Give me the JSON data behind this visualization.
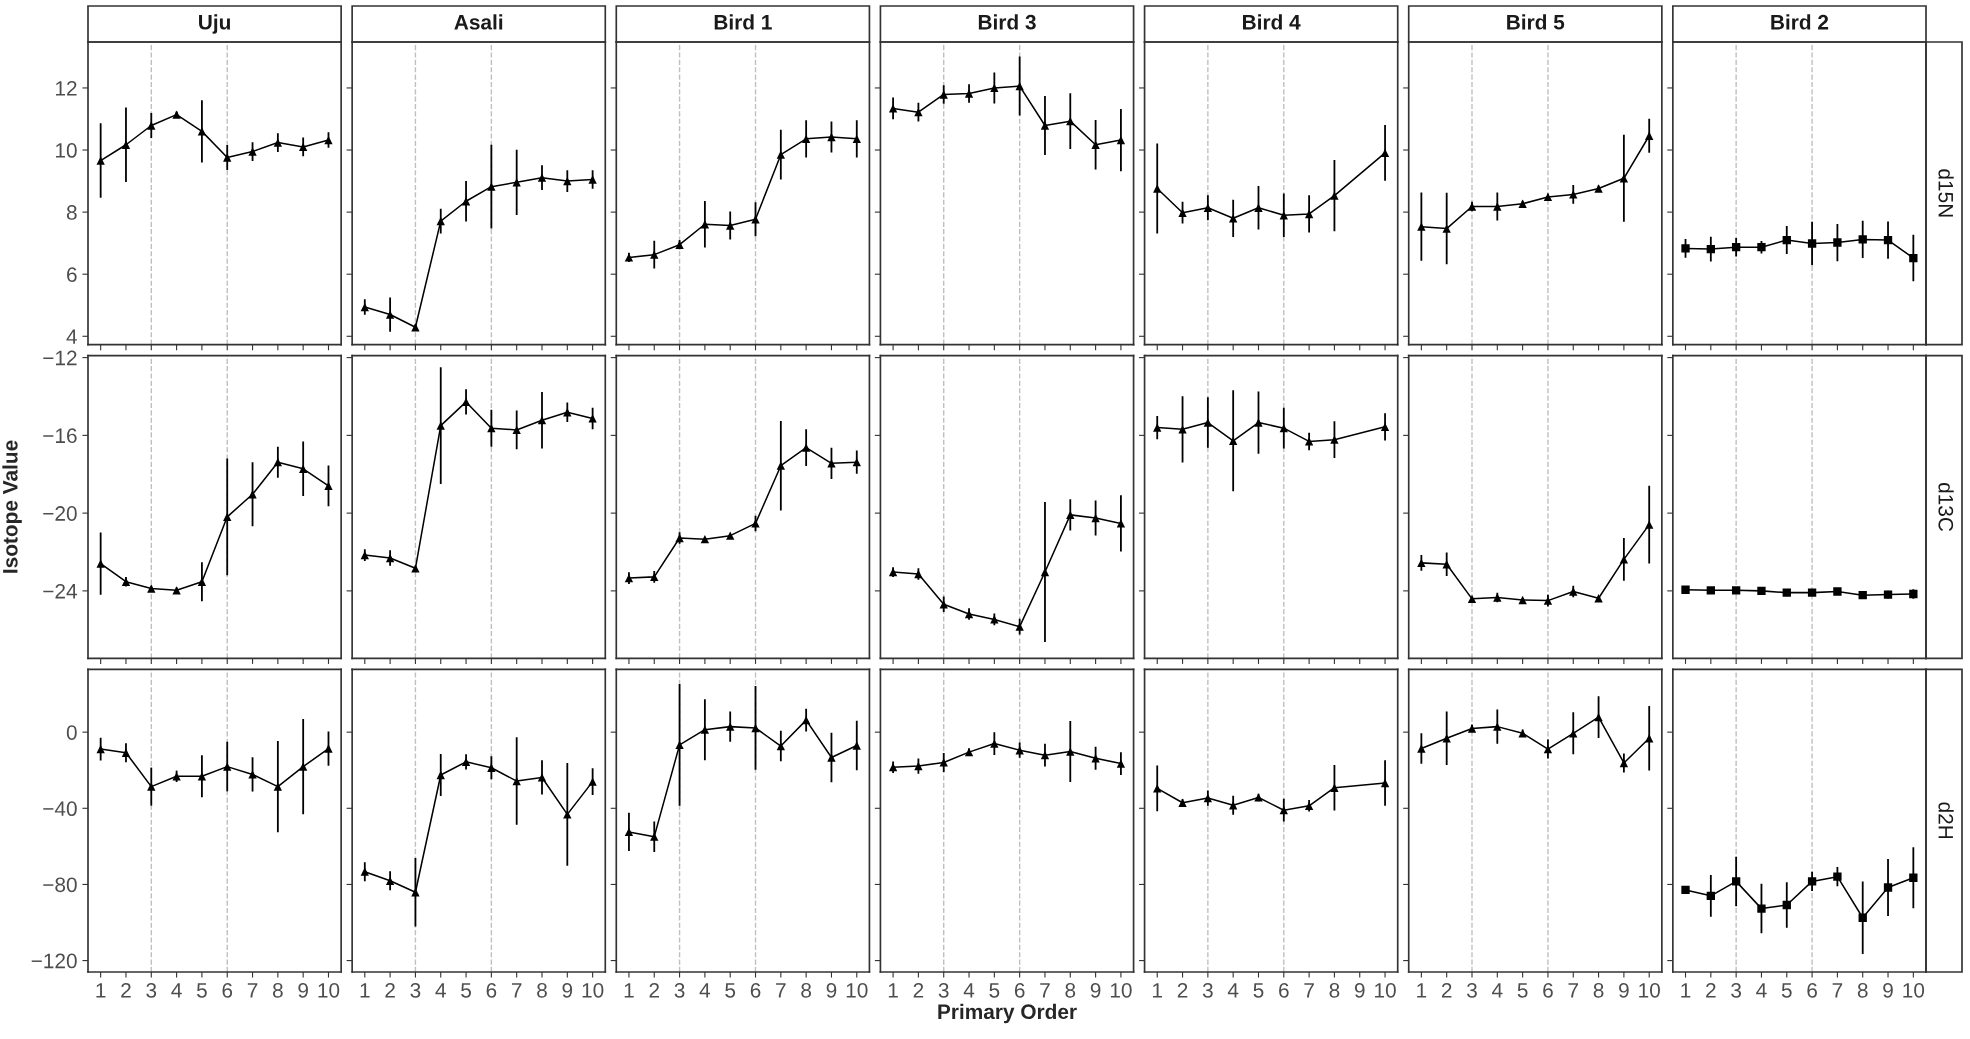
{
  "chart_data": [
    {
      "type": "line",
      "title": "Uju",
      "x": [
        1,
        2,
        3,
        4,
        5,
        6,
        7,
        8,
        9,
        10
      ],
      "xlim": [
        0.5,
        10.5
      ],
      "xticks": [
        1,
        2,
        3,
        4,
        5,
        6,
        7,
        8,
        9,
        10
      ],
      "ylim": [
        3.73,
        13.48
      ],
      "yticks": [
        4,
        6,
        8,
        10,
        12
      ],
      "tick_labels": "y",
      "marker": "triangle",
      "ref_lines": [
        {
          "axis": "x",
          "value": 3,
          "color": "#bfbfbf",
          "line_style": "dashed"
        },
        {
          "axis": "x",
          "value": 6,
          "color": "#bfbfbf",
          "line_style": "dashed"
        }
      ],
      "series": [
        {
          "color": "#000000",
          "values": [
            9.66,
            10.17,
            10.79,
            11.14,
            10.6,
            9.76,
            9.95,
            10.24,
            10.1,
            10.32
          ],
          "errors": [
            1.2,
            1.2,
            0.4,
            0.1,
            1.0,
            0.4,
            0.3,
            0.3,
            0.3,
            0.25
          ]
        }
      ]
    },
    {
      "type": "line",
      "title": "Asali",
      "x": [
        1,
        2,
        3,
        4,
        5,
        6,
        7,
        8,
        9,
        10
      ],
      "xlim": [
        0.5,
        10.5
      ],
      "xticks": [
        1,
        2,
        3,
        4,
        5,
        6,
        7,
        8,
        9,
        10
      ],
      "ylim": [
        3.73,
        13.48
      ],
      "yticks": [
        4,
        6,
        8,
        10,
        12
      ],
      "tick_labels": false,
      "marker": "triangle",
      "ref_lines": [
        {
          "axis": "x",
          "value": 3,
          "color": "#bfbfbf",
          "line_style": "dashed"
        },
        {
          "axis": "x",
          "value": 6,
          "color": "#bfbfbf",
          "line_style": "dashed"
        }
      ],
      "series": [
        {
          "color": "#000000",
          "values": [
            4.94,
            4.7,
            4.29,
            7.71,
            8.35,
            8.82,
            8.96,
            9.11,
            9.0,
            9.05
          ],
          "errors": [
            0.25,
            0.55,
            0.1,
            0.4,
            0.65,
            1.35,
            1.05,
            0.4,
            0.35,
            0.3
          ]
        }
      ]
    },
    {
      "type": "line",
      "title": "Bird 1",
      "x": [
        1,
        2,
        3,
        4,
        5,
        6,
        7,
        8,
        9,
        10
      ],
      "xlim": [
        0.5,
        10.5
      ],
      "xticks": [
        1,
        2,
        3,
        4,
        5,
        6,
        7,
        8,
        9,
        10
      ],
      "ylim": [
        3.73,
        13.48
      ],
      "yticks": [
        4,
        6,
        8,
        10,
        12
      ],
      "tick_labels": false,
      "marker": "triangle",
      "ref_lines": [
        {
          "axis": "x",
          "value": 3,
          "color": "#bfbfbf",
          "line_style": "dashed"
        },
        {
          "axis": "x",
          "value": 6,
          "color": "#bfbfbf",
          "line_style": "dashed"
        }
      ],
      "series": [
        {
          "color": "#000000",
          "values": [
            6.54,
            6.63,
            6.95,
            7.61,
            7.57,
            7.77,
            9.85,
            10.36,
            10.42,
            10.36
          ],
          "errors": [
            0.15,
            0.45,
            0.15,
            0.75,
            0.45,
            0.55,
            0.8,
            0.6,
            0.5,
            0.6
          ]
        }
      ]
    },
    {
      "type": "line",
      "title": "Bird 3",
      "x": [
        1,
        2,
        3,
        4,
        5,
        6,
        7,
        8,
        9,
        10
      ],
      "xlim": [
        0.5,
        10.5
      ],
      "xticks": [
        1,
        2,
        3,
        4,
        5,
        6,
        7,
        8,
        9,
        10
      ],
      "ylim": [
        3.73,
        13.48
      ],
      "yticks": [
        4,
        6,
        8,
        10,
        12
      ],
      "tick_labels": false,
      "marker": "triangle",
      "ref_lines": [
        {
          "axis": "x",
          "value": 3,
          "color": "#bfbfbf",
          "line_style": "dashed"
        },
        {
          "axis": "x",
          "value": 6,
          "color": "#bfbfbf",
          "line_style": "dashed"
        }
      ],
      "series": [
        {
          "color": "#000000",
          "values": [
            11.34,
            11.22,
            11.79,
            11.82,
            12.0,
            12.06,
            10.79,
            10.93,
            10.17,
            10.32
          ],
          "errors": [
            0.35,
            0.3,
            0.3,
            0.3,
            0.5,
            0.95,
            0.95,
            0.9,
            0.8,
            1.0
          ]
        }
      ]
    },
    {
      "type": "line",
      "title": "Bird 4",
      "x": [
        1,
        2,
        3,
        4,
        5,
        6,
        7,
        8,
        9,
        10
      ],
      "xlim": [
        0.5,
        10.5
      ],
      "xticks": [
        1,
        2,
        3,
        4,
        5,
        6,
        7,
        8,
        9,
        10
      ],
      "ylim": [
        3.73,
        13.48
      ],
      "yticks": [
        4,
        6,
        8,
        10,
        12
      ],
      "tick_labels": false,
      "marker": "triangle",
      "ref_lines": [
        {
          "axis": "x",
          "value": 3,
          "color": "#bfbfbf",
          "line_style": "dashed"
        },
        {
          "axis": "x",
          "value": 6,
          "color": "#bfbfbf",
          "line_style": "dashed"
        }
      ],
      "series": [
        {
          "color": "#000000",
          "values": [
            8.76,
            7.98,
            8.14,
            7.8,
            8.14,
            7.9,
            7.94,
            8.53,
            null,
            9.91
          ],
          "errors": [
            1.45,
            0.35,
            0.4,
            0.6,
            0.7,
            0.7,
            0.6,
            1.15,
            null,
            0.9
          ]
        }
      ]
    },
    {
      "type": "line",
      "title": "Bird 5",
      "x": [
        1,
        2,
        3,
        4,
        5,
        6,
        7,
        8,
        9,
        10
      ],
      "xlim": [
        0.5,
        10.5
      ],
      "xticks": [
        1,
        2,
        3,
        4,
        5,
        6,
        7,
        8,
        9,
        10
      ],
      "ylim": [
        3.73,
        13.48
      ],
      "yticks": [
        4,
        6,
        8,
        10,
        12
      ],
      "tick_labels": false,
      "marker": "triangle",
      "ref_lines": [
        {
          "axis": "x",
          "value": 3,
          "color": "#bfbfbf",
          "line_style": "dashed"
        },
        {
          "axis": "x",
          "value": 6,
          "color": "#bfbfbf",
          "line_style": "dashed"
        }
      ],
      "series": [
        {
          "color": "#000000",
          "values": [
            7.53,
            7.47,
            8.18,
            8.18,
            8.27,
            8.49,
            8.57,
            8.76,
            9.09,
            10.46
          ],
          "errors": [
            1.1,
            1.15,
            0.15,
            0.45,
            0.1,
            0.1,
            0.3,
            0.1,
            1.4,
            0.55
          ]
        }
      ]
    },
    {
      "type": "line",
      "title": "Bird 2",
      "y2label": "d15N",
      "x": [
        1,
        2,
        3,
        4,
        5,
        6,
        7,
        8,
        9,
        10
      ],
      "xlim": [
        0.5,
        10.5
      ],
      "xticks": [
        1,
        2,
        3,
        4,
        5,
        6,
        7,
        8,
        9,
        10
      ],
      "ylim": [
        3.73,
        13.48
      ],
      "yticks": [
        4,
        6,
        8,
        10,
        12
      ],
      "tick_labels": false,
      "marker": "square",
      "ref_lines": [
        {
          "axis": "x",
          "value": 3,
          "color": "#bfbfbf",
          "line_style": "dashed"
        },
        {
          "axis": "x",
          "value": 6,
          "color": "#bfbfbf",
          "line_style": "dashed"
        }
      ],
      "series": [
        {
          "color": "#000000",
          "values": [
            6.83,
            6.81,
            6.87,
            6.87,
            7.1,
            6.99,
            7.02,
            7.12,
            7.1,
            6.52
          ],
          "errors": [
            0.3,
            0.4,
            0.3,
            0.2,
            0.45,
            0.7,
            0.6,
            0.6,
            0.6,
            0.75
          ]
        }
      ]
    },
    {
      "type": "line",
      "ylabel": "Isotope Value",
      "x": [
        1,
        2,
        3,
        4,
        5,
        6,
        7,
        8,
        9,
        10
      ],
      "xlim": [
        0.5,
        10.5
      ],
      "xticks": [
        1,
        2,
        3,
        4,
        5,
        6,
        7,
        8,
        9,
        10
      ],
      "ylim": [
        -27.47,
        -11.9
      ],
      "yticks": [
        -24,
        -20,
        -16,
        -12
      ],
      "tick_labels": "y",
      "marker": "triangle",
      "ref_lines": [
        {
          "axis": "x",
          "value": 3,
          "color": "#bfbfbf",
          "line_style": "dashed"
        },
        {
          "axis": "x",
          "value": 6,
          "color": "#bfbfbf",
          "line_style": "dashed"
        }
      ],
      "series": [
        {
          "color": "#000000",
          "values": [
            -22.6,
            -23.53,
            -23.88,
            -23.97,
            -23.53,
            -20.19,
            -19.03,
            -17.38,
            -17.72,
            -18.6
          ],
          "errors": [
            1.6,
            0.25,
            0.15,
            0.15,
            1.0,
            3.0,
            1.65,
            0.8,
            1.4,
            1.05
          ]
        }
      ]
    },
    {
      "type": "line",
      "x": [
        1,
        2,
        3,
        4,
        5,
        6,
        7,
        8,
        9,
        10
      ],
      "xlim": [
        0.5,
        10.5
      ],
      "xticks": [
        1,
        2,
        3,
        4,
        5,
        6,
        7,
        8,
        9,
        10
      ],
      "ylim": [
        -27.47,
        -11.9
      ],
      "yticks": [
        -24,
        -20,
        -16,
        -12
      ],
      "tick_labels": false,
      "marker": "triangle",
      "ref_lines": [
        {
          "axis": "x",
          "value": 3,
          "color": "#bfbfbf",
          "line_style": "dashed"
        },
        {
          "axis": "x",
          "value": 6,
          "color": "#bfbfbf",
          "line_style": "dashed"
        }
      ],
      "series": [
        {
          "color": "#000000",
          "values": [
            -22.16,
            -22.31,
            -22.84,
            -15.5,
            -14.28,
            -15.63,
            -15.72,
            -15.22,
            -14.81,
            -15.13
          ],
          "errors": [
            0.3,
            0.4,
            0.1,
            3.0,
            0.65,
            0.95,
            1.0,
            1.45,
            0.5,
            0.55
          ]
        }
      ]
    },
    {
      "type": "line",
      "x": [
        1,
        2,
        3,
        4,
        5,
        6,
        7,
        8,
        9,
        10
      ],
      "xlim": [
        0.5,
        10.5
      ],
      "xticks": [
        1,
        2,
        3,
        4,
        5,
        6,
        7,
        8,
        9,
        10
      ],
      "ylim": [
        -27.47,
        -11.9
      ],
      "yticks": [
        -24,
        -20,
        -16,
        -12
      ],
      "tick_labels": false,
      "marker": "triangle",
      "ref_lines": [
        {
          "axis": "x",
          "value": 3,
          "color": "#bfbfbf",
          "line_style": "dashed"
        },
        {
          "axis": "x",
          "value": 6,
          "color": "#bfbfbf",
          "line_style": "dashed"
        }
      ],
      "series": [
        {
          "color": "#000000",
          "values": [
            -23.34,
            -23.28,
            -21.28,
            -21.34,
            -21.16,
            -20.53,
            -17.56,
            -16.63,
            -17.44,
            -17.38
          ],
          "errors": [
            0.3,
            0.3,
            0.3,
            0.1,
            0.1,
            0.4,
            2.3,
            0.95,
            0.8,
            0.6
          ]
        }
      ]
    },
    {
      "type": "line",
      "x": [
        1,
        2,
        3,
        4,
        5,
        6,
        7,
        8,
        9,
        10
      ],
      "xlim": [
        0.5,
        10.5
      ],
      "xticks": [
        1,
        2,
        3,
        4,
        5,
        6,
        7,
        8,
        9,
        10
      ],
      "ylim": [
        -27.47,
        -11.9
      ],
      "yticks": [
        -24,
        -20,
        -16,
        -12
      ],
      "tick_labels": false,
      "marker": "triangle",
      "ref_lines": [
        {
          "axis": "x",
          "value": 3,
          "color": "#bfbfbf",
          "line_style": "dashed"
        },
        {
          "axis": "x",
          "value": 6,
          "color": "#bfbfbf",
          "line_style": "dashed"
        }
      ],
      "series": [
        {
          "color": "#000000",
          "values": [
            -23.03,
            -23.13,
            -24.69,
            -25.19,
            -25.47,
            -25.84,
            -23.03,
            -20.09,
            -20.25,
            -20.53
          ],
          "errors": [
            0.25,
            0.3,
            0.4,
            0.3,
            0.3,
            0.4,
            3.6,
            0.8,
            0.9,
            1.45
          ]
        }
      ]
    },
    {
      "type": "line",
      "x": [
        1,
        2,
        3,
        4,
        5,
        6,
        7,
        8,
        9,
        10
      ],
      "xlim": [
        0.5,
        10.5
      ],
      "xticks": [
        1,
        2,
        3,
        4,
        5,
        6,
        7,
        8,
        9,
        10
      ],
      "ylim": [
        -27.47,
        -11.9
      ],
      "yticks": [
        -24,
        -20,
        -16,
        -12
      ],
      "tick_labels": false,
      "marker": "triangle",
      "ref_lines": [
        {
          "axis": "x",
          "value": 3,
          "color": "#bfbfbf",
          "line_style": "dashed"
        },
        {
          "axis": "x",
          "value": 6,
          "color": "#bfbfbf",
          "line_style": "dashed"
        }
      ],
      "series": [
        {
          "color": "#000000",
          "values": [
            -15.6,
            -15.69,
            -15.34,
            -16.28,
            -15.34,
            -15.63,
            -16.31,
            -16.22,
            null,
            -15.56
          ],
          "errors": [
            0.6,
            1.7,
            1.3,
            2.6,
            1.6,
            1.05,
            0.45,
            0.95,
            null,
            0.7
          ]
        }
      ]
    },
    {
      "type": "line",
      "x": [
        1,
        2,
        3,
        4,
        5,
        6,
        7,
        8,
        9,
        10
      ],
      "xlim": [
        0.5,
        10.5
      ],
      "xticks": [
        1,
        2,
        3,
        4,
        5,
        6,
        7,
        8,
        9,
        10
      ],
      "ylim": [
        -27.47,
        -11.9
      ],
      "yticks": [
        -24,
        -20,
        -16,
        -12
      ],
      "tick_labels": false,
      "marker": "triangle",
      "ref_lines": [
        {
          "axis": "x",
          "value": 3,
          "color": "#bfbfbf",
          "line_style": "dashed"
        },
        {
          "axis": "x",
          "value": 6,
          "color": "#bfbfbf",
          "line_style": "dashed"
        }
      ],
      "series": [
        {
          "color": "#000000",
          "values": [
            -22.56,
            -22.63,
            -24.41,
            -24.34,
            -24.47,
            -24.5,
            -24.03,
            -24.38,
            -22.38,
            -20.59
          ],
          "errors": [
            0.4,
            0.6,
            0.1,
            0.25,
            0.1,
            0.3,
            0.3,
            0.1,
            1.1,
            2.0
          ]
        }
      ]
    },
    {
      "type": "line",
      "y2label": "d13C",
      "x": [
        1,
        2,
        3,
        4,
        5,
        6,
        7,
        8,
        9,
        10
      ],
      "xlim": [
        0.5,
        10.5
      ],
      "xticks": [
        1,
        2,
        3,
        4,
        5,
        6,
        7,
        8,
        9,
        10
      ],
      "ylim": [
        -27.47,
        -11.9
      ],
      "yticks": [
        -24,
        -20,
        -16,
        -12
      ],
      "tick_labels": false,
      "marker": "square",
      "ref_lines": [
        {
          "axis": "x",
          "value": 3,
          "color": "#bfbfbf",
          "line_style": "dashed"
        },
        {
          "axis": "x",
          "value": 6,
          "color": "#bfbfbf",
          "line_style": "dashed"
        }
      ],
      "series": [
        {
          "color": "#000000",
          "values": [
            -23.94,
            -23.97,
            -23.97,
            -24.0,
            -24.09,
            -24.09,
            -24.03,
            -24.22,
            -24.19,
            -24.16
          ],
          "errors": [
            0.1,
            0.1,
            0.1,
            0.15,
            0.15,
            0.15,
            0.1,
            0.15,
            0.2,
            0.25
          ]
        }
      ]
    },
    {
      "type": "line",
      "x": [
        1,
        2,
        3,
        4,
        5,
        6,
        7,
        8,
        9,
        10
      ],
      "xlim": [
        0.5,
        10.5
      ],
      "xticks": [
        1,
        2,
        3,
        4,
        5,
        6,
        7,
        8,
        9,
        10
      ],
      "ylim": [
        -126,
        33
      ],
      "yticks": [
        -120,
        -80,
        -40,
        0
      ],
      "marker": "triangle",
      "ref_lines": [
        {
          "axis": "x",
          "value": 3,
          "color": "#bfbfbf",
          "line_style": "dashed"
        },
        {
          "axis": "x",
          "value": 6,
          "color": "#bfbfbf",
          "line_style": "dashed"
        }
      ],
      "series": [
        {
          "color": "#000000",
          "values": [
            -8.9,
            -10.8,
            -28.6,
            -23.2,
            -23.2,
            -18.1,
            -22.2,
            -28.6,
            -18.1,
            -8.6
          ],
          "errors": [
            6,
            5,
            10,
            3,
            11,
            13,
            9,
            24,
            25,
            9
          ]
        }
      ]
    },
    {
      "type": "line",
      "x": [
        1,
        2,
        3,
        4,
        5,
        6,
        7,
        8,
        9,
        10
      ],
      "xlim": [
        0.5,
        10.5
      ],
      "xticks": [
        1,
        2,
        3,
        4,
        5,
        6,
        7,
        8,
        9,
        10
      ],
      "ylim": [
        -126,
        33
      ],
      "yticks": [
        -120,
        -80,
        -40,
        0
      ],
      "tick_labels": "x",
      "marker": "triangle",
      "ref_lines": [
        {
          "axis": "x",
          "value": 3,
          "color": "#bfbfbf",
          "line_style": "dashed"
        },
        {
          "axis": "x",
          "value": 6,
          "color": "#bfbfbf",
          "line_style": "dashed"
        }
      ],
      "series": [
        {
          "color": "#000000",
          "values": [
            -73.3,
            -78.1,
            -84.1,
            -22.5,
            -15.6,
            -18.7,
            -25.7,
            -23.8,
            -43.2,
            -26.0
          ],
          "errors": [
            5,
            5,
            18,
            11,
            4,
            6,
            23,
            9,
            27,
            7
          ]
        }
      ]
    },
    {
      "type": "line",
      "x": [
        1,
        2,
        3,
        4,
        5,
        6,
        7,
        8,
        9,
        10
      ],
      "xlim": [
        0.5,
        10.5
      ],
      "xticks": [
        1,
        2,
        3,
        4,
        5,
        6,
        7,
        8,
        9,
        10
      ],
      "ylim": [
        -126,
        33
      ],
      "yticks": [
        -120,
        -80,
        -40,
        0
      ],
      "tick_labels": "x",
      "marker": "triangle",
      "ref_lines": [
        {
          "axis": "x",
          "value": 3,
          "color": "#bfbfbf",
          "line_style": "dashed"
        },
        {
          "axis": "x",
          "value": 6,
          "color": "#bfbfbf",
          "line_style": "dashed"
        }
      ],
      "series": [
        {
          "color": "#000000",
          "values": [
            -52.4,
            -54.9,
            -6.7,
            1.3,
            2.9,
            2.2,
            -7.3,
            6.3,
            -13.3,
            -7.0
          ],
          "errors": [
            10,
            8,
            32,
            16,
            8,
            22,
            8,
            6,
            13,
            13
          ]
        }
      ]
    },
    {
      "type": "line",
      "xlabel": "Primary Order",
      "x": [
        1,
        2,
        3,
        4,
        5,
        6,
        7,
        8,
        9,
        10
      ],
      "xlim": [
        0.5,
        10.5
      ],
      "xticks": [
        1,
        2,
        3,
        4,
        5,
        6,
        7,
        8,
        9,
        10
      ],
      "ylim": [
        -126,
        33
      ],
      "yticks": [
        -120,
        -80,
        -40,
        0
      ],
      "tick_labels": "x",
      "marker": "triangle",
      "ref_lines": [
        {
          "axis": "x",
          "value": 3,
          "color": "#bfbfbf",
          "line_style": "dashed"
        },
        {
          "axis": "x",
          "value": 6,
          "color": "#bfbfbf",
          "line_style": "dashed"
        }
      ],
      "series": [
        {
          "color": "#000000",
          "values": [
            -18.4,
            -17.8,
            -15.9,
            -10.5,
            -6.0,
            -9.5,
            -12.1,
            -10.2,
            -13.7,
            -16.5
          ],
          "errors": [
            3,
            4,
            5,
            2,
            6,
            4,
            6,
            16,
            6,
            6
          ]
        }
      ]
    },
    {
      "type": "line",
      "x": [
        1,
        2,
        3,
        4,
        5,
        6,
        7,
        8,
        9,
        10
      ],
      "xlim": [
        0.5,
        10.5
      ],
      "xticks": [
        1,
        2,
        3,
        4,
        5,
        6,
        7,
        8,
        9,
        10
      ],
      "ylim": [
        -126,
        33
      ],
      "yticks": [
        -120,
        -80,
        -40,
        0
      ],
      "tick_labels": "x",
      "marker": "triangle",
      "ref_lines": [
        {
          "axis": "x",
          "value": 3,
          "color": "#bfbfbf",
          "line_style": "dashed"
        },
        {
          "axis": "x",
          "value": 6,
          "color": "#bfbfbf",
          "line_style": "dashed"
        }
      ],
      "series": [
        {
          "color": "#000000",
          "values": [
            -29.5,
            -37.1,
            -34.6,
            -38.4,
            -34.3,
            -41.0,
            -38.7,
            -29.2,
            null,
            -26.7
          ],
          "errors": [
            12,
            2,
            4,
            5,
            2,
            6,
            3,
            12,
            null,
            12
          ]
        }
      ]
    },
    {
      "type": "line",
      "x": [
        1,
        2,
        3,
        4,
        5,
        6,
        7,
        8,
        9,
        10
      ],
      "xlim": [
        0.5,
        10.5
      ],
      "xticks": [
        1,
        2,
        3,
        4,
        5,
        6,
        7,
        8,
        9,
        10
      ],
      "ylim": [
        -126,
        33
      ],
      "yticks": [
        -120,
        -80,
        -40,
        0
      ],
      "tick_labels": "x",
      "marker": "triangle",
      "ref_lines": [
        {
          "axis": "x",
          "value": 3,
          "color": "#bfbfbf",
          "line_style": "dashed"
        },
        {
          "axis": "x",
          "value": 6,
          "color": "#bfbfbf",
          "line_style": "dashed"
        }
      ],
      "series": [
        {
          "color": "#000000",
          "values": [
            -8.6,
            -3.2,
            1.9,
            2.9,
            -0.6,
            -8.9,
            -0.6,
            7.9,
            -16.2,
            -3.2
          ],
          "errors": [
            8,
            14,
            2,
            9,
            2,
            5,
            11,
            11,
            5,
            17
          ]
        }
      ]
    },
    {
      "type": "line",
      "y2label": "d2H",
      "x": [
        1,
        2,
        3,
        4,
        5,
        6,
        7,
        8,
        9,
        10
      ],
      "xlim": [
        0.5,
        10.5
      ],
      "xticks": [
        1,
        2,
        3,
        4,
        5,
        6,
        7,
        8,
        9,
        10
      ],
      "ylim": [
        -126,
        33
      ],
      "yticks": [
        -120,
        -80,
        -40,
        0
      ],
      "tick_labels": "x",
      "marker": "square",
      "ref_lines": [
        {
          "axis": "x",
          "value": 3,
          "color": "#bfbfbf",
          "line_style": "dashed"
        },
        {
          "axis": "x",
          "value": 6,
          "color": "#bfbfbf",
          "line_style": "dashed"
        }
      ],
      "series": [
        {
          "color": "#000000",
          "values": [
            -82.9,
            -86.0,
            -78.4,
            -92.7,
            -90.8,
            -78.4,
            -75.9,
            -97.5,
            -81.6,
            -76.5
          ],
          "errors": [
            2,
            11,
            13,
            13,
            12,
            5,
            5,
            19,
            15,
            16
          ]
        }
      ]
    }
  ]
}
